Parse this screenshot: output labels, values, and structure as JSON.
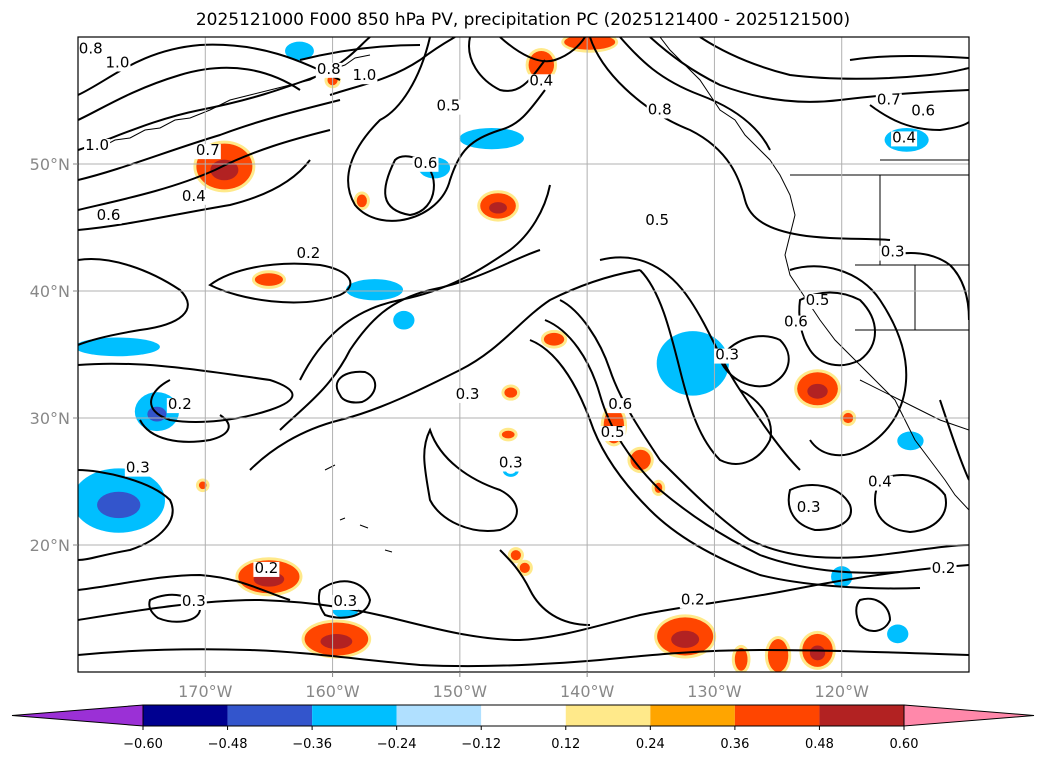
{
  "title": "2025121000 F000 850 hPa PV, precipitation PC (2025121400 - 2025121500)",
  "map": {
    "lon_min": -180,
    "lon_max": -110,
    "lat_min": 10,
    "lat_max": 60,
    "lon_ticks": [
      {
        "value": -170,
        "label": "170°W"
      },
      {
        "value": -160,
        "label": "160°W"
      },
      {
        "value": -150,
        "label": "150°W"
      },
      {
        "value": -140,
        "label": "140°W"
      },
      {
        "value": -130,
        "label": "130°W"
      },
      {
        "value": -120,
        "label": "120°W"
      }
    ],
    "lat_ticks": [
      {
        "value": 50,
        "label": "50°N"
      },
      {
        "value": 40,
        "label": "40°N"
      },
      {
        "value": 30,
        "label": "30°N"
      },
      {
        "value": 20,
        "label": "20°N"
      }
    ],
    "grid": true
  },
  "colorbar": {
    "colors": [
      "#9b30d6",
      "#000090",
      "#3355cc",
      "#00bfff",
      "#b0e0ff",
      "#ffffff",
      "#ffe98a",
      "#ffa500",
      "#ff4500",
      "#b22222",
      "#ff88aa"
    ],
    "ticks": [
      "−0.60",
      "−0.48",
      "−0.36",
      "−0.24",
      "−0.12",
      "0.12",
      "0.24",
      "0.36",
      "0.48",
      "0.60"
    ]
  },
  "contour_labels": [
    {
      "text": "0.8",
      "lon": -179,
      "lat": 58.7
    },
    {
      "text": "1.0",
      "lon": -176.9,
      "lat": 57.6
    },
    {
      "text": "0.8",
      "lon": -160.3,
      "lat": 57.1
    },
    {
      "text": "1.0",
      "lon": -157.5,
      "lat": 56.6
    },
    {
      "text": "0.5",
      "lon": -150.9,
      "lat": 54.2
    },
    {
      "text": "0.4",
      "lon": -143.6,
      "lat": 56.2
    },
    {
      "text": "0.8",
      "lon": -134.3,
      "lat": 53.9
    },
    {
      "text": "0.7",
      "lon": -116.3,
      "lat": 54.7
    },
    {
      "text": "0.6",
      "lon": -113.6,
      "lat": 53.8
    },
    {
      "text": "0.4",
      "lon": -115.1,
      "lat": 51.7
    },
    {
      "text": "1.0",
      "lon": -178.5,
      "lat": 51.1
    },
    {
      "text": "0.7",
      "lon": -169.8,
      "lat": 50.7
    },
    {
      "text": "0.6",
      "lon": -152.7,
      "lat": 49.7
    },
    {
      "text": "0.4",
      "lon": -170.9,
      "lat": 47.1
    },
    {
      "text": "0.6",
      "lon": -177.6,
      "lat": 45.6
    },
    {
      "text": "0.5",
      "lon": -134.5,
      "lat": 45.2
    },
    {
      "text": "0.2",
      "lon": -161.9,
      "lat": 42.6
    },
    {
      "text": "0.3",
      "lon": -116.0,
      "lat": 42.7
    },
    {
      "text": "0.5",
      "lon": -121.9,
      "lat": 38.9
    },
    {
      "text": "0.6",
      "lon": -123.6,
      "lat": 37.2
    },
    {
      "text": "0.3",
      "lon": -129.0,
      "lat": 34.6
    },
    {
      "text": "0.3",
      "lon": -149.4,
      "lat": 31.5
    },
    {
      "text": "0.2",
      "lon": -172.0,
      "lat": 30.7
    },
    {
      "text": "0.6",
      "lon": -137.4,
      "lat": 30.7
    },
    {
      "text": "0.5",
      "lon": -138.0,
      "lat": 28.5
    },
    {
      "text": "0.3",
      "lon": -146.0,
      "lat": 26.1
    },
    {
      "text": "0.3",
      "lon": -175.3,
      "lat": 25.7
    },
    {
      "text": "0.4",
      "lon": -117.0,
      "lat": 24.6
    },
    {
      "text": "0.3",
      "lon": -122.6,
      "lat": 22.6
    },
    {
      "text": "0.2",
      "lon": -165.2,
      "lat": 17.8
    },
    {
      "text": "0.2",
      "lon": -112.0,
      "lat": 17.8
    },
    {
      "text": "0.2",
      "lon": -131.7,
      "lat": 15.3
    },
    {
      "text": "0.3",
      "lon": -170.9,
      "lat": 15.2
    },
    {
      "text": "0.3",
      "lon": -159.0,
      "lat": 15.2
    }
  ],
  "precip_regions": [
    {
      "lon": -168.5,
      "lat": 49.8,
      "rx": 2.2,
      "ry": 1.8,
      "level": 0.36,
      "inner": 0.48
    },
    {
      "lon": -162.6,
      "lat": 58.9,
      "rx": 0.9,
      "ry": 0.5,
      "level": -0.36,
      "inner": null
    },
    {
      "lon": -160.0,
      "lat": 56.6,
      "rx": 0.4,
      "ry": 0.4,
      "level": 0.36,
      "inner": null
    },
    {
      "lon": -143.6,
      "lat": 57.8,
      "rx": 1.0,
      "ry": 1.1,
      "level": 0.36,
      "inner": null
    },
    {
      "lon": -139.8,
      "lat": 59.6,
      "rx": 2.0,
      "ry": 0.6,
      "level": 0.36,
      "inner": null
    },
    {
      "lon": -147.5,
      "lat": 52.0,
      "rx": 2.3,
      "ry": 0.6,
      "level": -0.36,
      "inner": null
    },
    {
      "lon": -152.0,
      "lat": 49.7,
      "rx": 1.0,
      "ry": 0.6,
      "level": -0.36,
      "inner": null
    },
    {
      "lon": -158.0,
      "lat": 56.9,
      "rx": 0.0,
      "ry": 0.0,
      "level": -0.12,
      "inner": null
    },
    {
      "lon": -147.0,
      "lat": 46.7,
      "rx": 1.4,
      "ry": 1.0,
      "level": 0.36,
      "inner": 0.48
    },
    {
      "lon": -157.7,
      "lat": 47.1,
      "rx": 0.4,
      "ry": 0.5,
      "level": 0.36,
      "inner": null
    },
    {
      "lon": -165.0,
      "lat": 40.9,
      "rx": 1.1,
      "ry": 0.5,
      "level": 0.36,
      "inner": null
    },
    {
      "lon": -156.7,
      "lat": 40.1,
      "rx": 2.0,
      "ry": 0.6,
      "level": -0.36,
      "inner": null
    },
    {
      "lon": -154.4,
      "lat": 37.7,
      "rx": 0.6,
      "ry": 0.5,
      "level": -0.36,
      "inner": null
    },
    {
      "lon": -176.9,
      "lat": 35.6,
      "rx": 3.1,
      "ry": 0.5,
      "level": -0.36,
      "inner": null
    },
    {
      "lon": -173.8,
      "lat": 30.5,
      "rx": 1.5,
      "ry": 1.3,
      "level": -0.36,
      "inner": -0.48
    },
    {
      "lon": -176.8,
      "lat": 23.5,
      "rx": 3.4,
      "ry": 2.3,
      "level": -0.36,
      "inner": -0.48
    },
    {
      "lon": -131.7,
      "lat": 34.3,
      "rx": 2.6,
      "ry": 2.3,
      "level": -0.36,
      "inner": null
    },
    {
      "lon": -142.6,
      "lat": 36.2,
      "rx": 0.8,
      "ry": 0.5,
      "level": 0.36,
      "inner": null
    },
    {
      "lon": -146.0,
      "lat": 32.0,
      "rx": 0.5,
      "ry": 0.4,
      "level": 0.36,
      "inner": null
    },
    {
      "lon": -137.9,
      "lat": 29.4,
      "rx": 0.8,
      "ry": 1.4,
      "level": 0.36,
      "inner": null
    },
    {
      "lon": -135.8,
      "lat": 26.7,
      "rx": 0.8,
      "ry": 0.8,
      "level": 0.36,
      "inner": null
    },
    {
      "lon": -121.9,
      "lat": 32.3,
      "rx": 1.6,
      "ry": 1.3,
      "level": 0.36,
      "inner": 0.48
    },
    {
      "lon": -119.5,
      "lat": 30.0,
      "rx": 0.4,
      "ry": 0.4,
      "level": 0.36,
      "inner": null
    },
    {
      "lon": -114.6,
      "lat": 28.2,
      "rx": 0.8,
      "ry": 0.5,
      "level": -0.36,
      "inner": null
    },
    {
      "lon": -114.9,
      "lat": 51.9,
      "rx": 1.5,
      "ry": 0.7,
      "level": -0.36,
      "inner": null
    },
    {
      "lon": -165.0,
      "lat": 17.5,
      "rx": 2.4,
      "ry": 1.3,
      "level": 0.36,
      "inner": 0.48
    },
    {
      "lon": -159.7,
      "lat": 12.6,
      "rx": 2.5,
      "ry": 1.3,
      "level": 0.36,
      "inner": 0.48
    },
    {
      "lon": -159.0,
      "lat": 14.9,
      "rx": 0.8,
      "ry": 0.4,
      "level": -0.36,
      "inner": null
    },
    {
      "lon": -146.0,
      "lat": 25.9,
      "rx": 0.4,
      "ry": 0.3,
      "level": -0.12,
      "inner": null
    },
    {
      "lon": -146.2,
      "lat": 28.7,
      "rx": 0.5,
      "ry": 0.3,
      "level": 0.36,
      "inner": null
    },
    {
      "lon": -170.2,
      "lat": 24.7,
      "rx": 0.3,
      "ry": 0.3,
      "level": 0.36,
      "inner": null
    },
    {
      "lon": -145.6,
      "lat": 19.2,
      "rx": 0.4,
      "ry": 0.4,
      "level": 0.36,
      "inner": null
    },
    {
      "lon": -144.9,
      "lat": 18.2,
      "rx": 0.4,
      "ry": 0.4,
      "level": 0.36,
      "inner": null
    },
    {
      "lon": -132.3,
      "lat": 12.8,
      "rx": 2.2,
      "ry": 1.5,
      "level": 0.36,
      "inner": 0.48
    },
    {
      "lon": -121.9,
      "lat": 11.7,
      "rx": 1.2,
      "ry": 1.3,
      "level": 0.36,
      "inner": 0.48
    },
    {
      "lon": -125.0,
      "lat": 11.3,
      "rx": 0.8,
      "ry": 1.3,
      "level": 0.36,
      "inner": null
    },
    {
      "lon": -127.9,
      "lat": 11.0,
      "rx": 0.5,
      "ry": 0.9,
      "level": 0.36,
      "inner": null
    },
    {
      "lon": -134.4,
      "lat": 24.5,
      "rx": 0.3,
      "ry": 0.4,
      "level": 0.36,
      "inner": null
    },
    {
      "lon": -120.0,
      "lat": 17.5,
      "rx": 0.6,
      "ry": 0.6,
      "level": -0.36,
      "inner": null
    },
    {
      "lon": -115.6,
      "lat": 13.0,
      "rx": 0.6,
      "ry": 0.5,
      "level": -0.36,
      "inner": null
    }
  ]
}
